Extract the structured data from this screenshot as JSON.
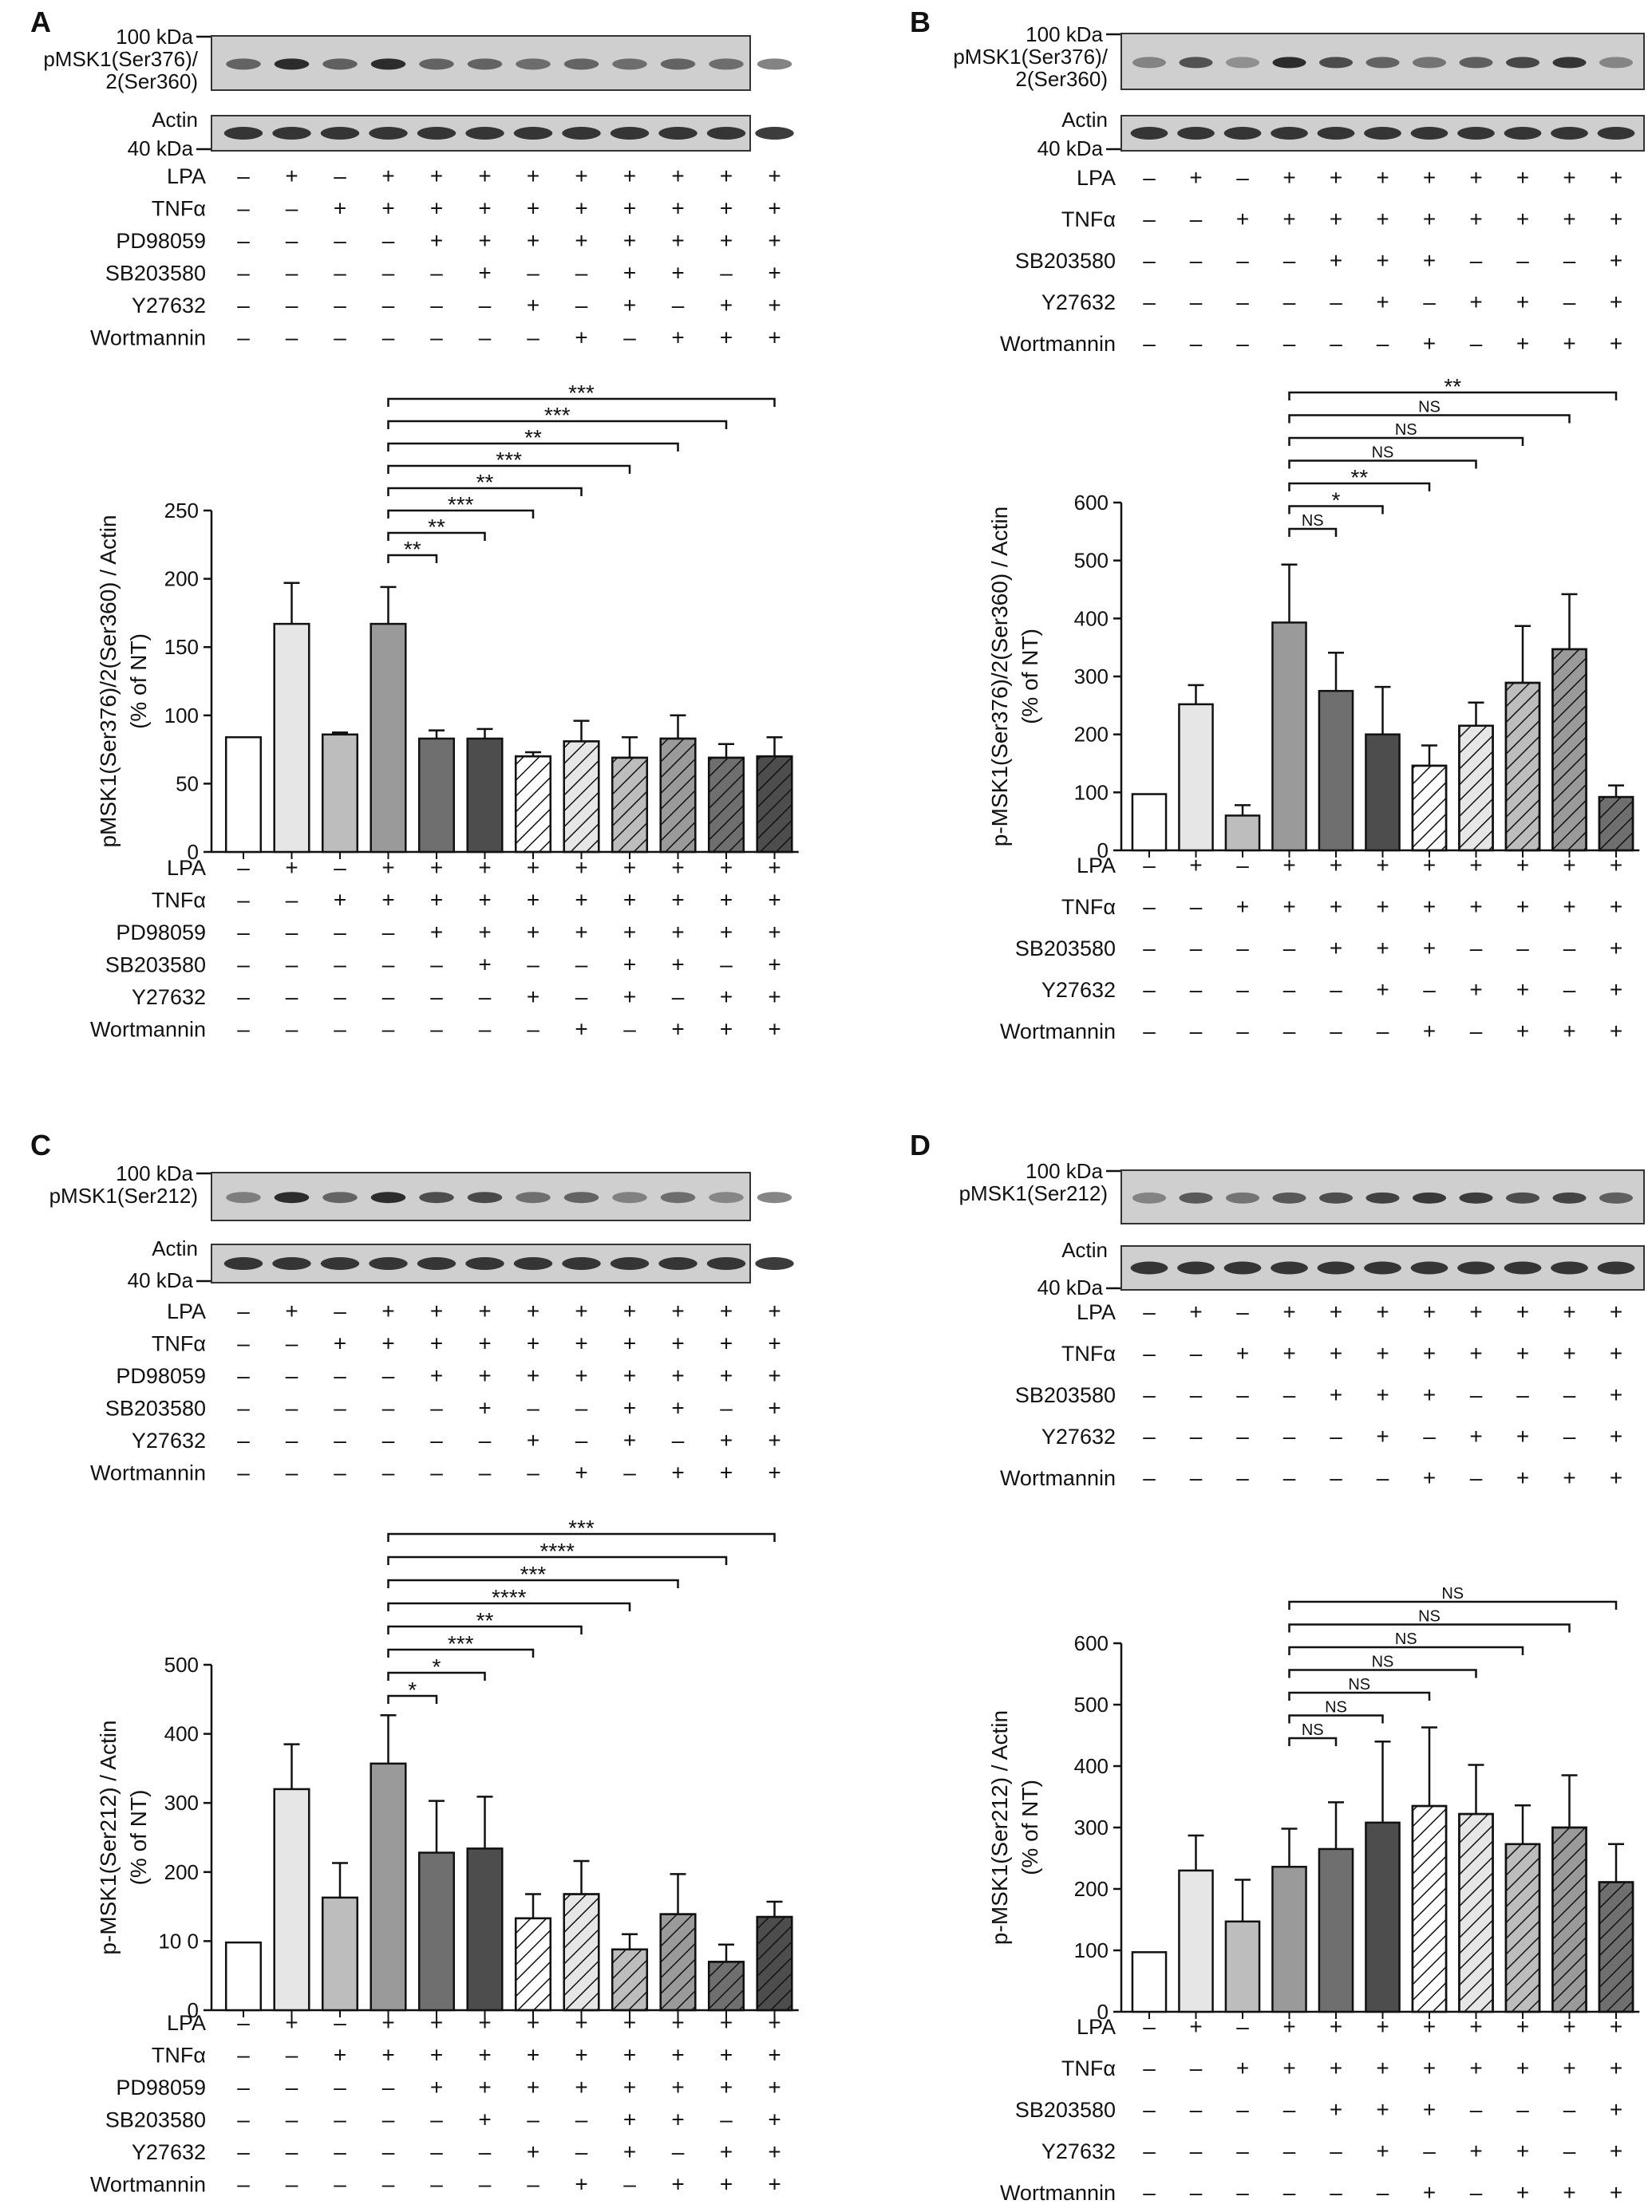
{
  "figure": {
    "panel_labels": [
      "A",
      "B",
      "C",
      "D"
    ]
  },
  "colors": {
    "white": "#ffffff",
    "light": "#e6e6e6",
    "mid": "#bdbdbd",
    "gray": "#9a9a9a",
    "dark": "#6f6f6f",
    "darker": "#4d4d4d",
    "blot": "#cfcfcf"
  },
  "chart_data": [
    {
      "panel": "A",
      "type": "bar",
      "blot_labels": {
        "top_marker": "100 kDa",
        "bottom_marker": "40 kDa",
        "band1": "pMSK1(Ser376)/",
        "band1b": "2(Ser360)",
        "band2": "Actin"
      },
      "ylabel": [
        "pMSK1(Ser376)/2(Ser360) / Actin",
        "(% of NT)"
      ],
      "ylim": [
        0,
        250
      ],
      "yticks": [
        "0",
        "50",
        "100",
        "150",
        "200",
        "250"
      ],
      "values": [
        84,
        167,
        86,
        167,
        83,
        83,
        70,
        81,
        69,
        83,
        69,
        70
      ],
      "errors": [
        0,
        30,
        1.5,
        27,
        6,
        7,
        3,
        15,
        15,
        17,
        10,
        14
      ],
      "fills": [
        "white",
        "light",
        "mid",
        "gray",
        "dark",
        "darker",
        "white",
        "light",
        "mid",
        "gray",
        "dark",
        "darker"
      ],
      "hatched": [
        false,
        false,
        false,
        false,
        false,
        false,
        true,
        true,
        true,
        true,
        true,
        true
      ],
      "comparisons": [
        {
          "from": 3,
          "to": 4,
          "label": "**"
        },
        {
          "from": 3,
          "to": 5,
          "label": "**"
        },
        {
          "from": 3,
          "to": 6,
          "label": "***"
        },
        {
          "from": 3,
          "to": 7,
          "label": "**"
        },
        {
          "from": 3,
          "to": 8,
          "label": "***"
        },
        {
          "from": 3,
          "to": 9,
          "label": "**"
        },
        {
          "from": 3,
          "to": 10,
          "label": "***"
        },
        {
          "from": 3,
          "to": 11,
          "label": "***"
        }
      ],
      "treatments": [
        {
          "name": "LPA",
          "signs": [
            "–",
            "+",
            "–",
            "+",
            "+",
            "+",
            "+",
            "+",
            "+",
            "+",
            "+",
            "+"
          ]
        },
        {
          "name": "TNFα",
          "signs": [
            "–",
            "–",
            "+",
            "+",
            "+",
            "+",
            "+",
            "+",
            "+",
            "+",
            "+",
            "+"
          ]
        },
        {
          "name": "PD98059",
          "signs": [
            "–",
            "–",
            "–",
            "–",
            "+",
            "+",
            "+",
            "+",
            "+",
            "+",
            "+",
            "+"
          ]
        },
        {
          "name": "SB203580",
          "signs": [
            "–",
            "–",
            "–",
            "–",
            "–",
            "+",
            "–",
            "–",
            "+",
            "+",
            "–",
            "+"
          ]
        },
        {
          "name": "Y27632",
          "signs": [
            "–",
            "–",
            "–",
            "–",
            "–",
            "–",
            "+",
            "–",
            "+",
            "–",
            "+",
            "+"
          ]
        },
        {
          "name": "Wortmannin",
          "signs": [
            "–",
            "–",
            "–",
            "–",
            "–",
            "–",
            "–",
            "+",
            "–",
            "+",
            "+",
            "+"
          ]
        }
      ]
    },
    {
      "panel": "B",
      "type": "bar",
      "blot_labels": {
        "top_marker": "100 kDa",
        "bottom_marker": "40 kDa",
        "band1": "pMSK1(Ser376)/",
        "band1b": "2(Ser360)",
        "band2": "Actin"
      },
      "ylabel": [
        "p-MSK1(Ser376)/2(Ser360) / Actin",
        "(% of NT)"
      ],
      "ylim": [
        0,
        600
      ],
      "yticks": [
        "0",
        "100",
        "200",
        "300",
        "400",
        "500",
        "600"
      ],
      "values": [
        97,
        252,
        60,
        393,
        275,
        200,
        146,
        215,
        289,
        347,
        92
      ],
      "errors": [
        0,
        33,
        18,
        100,
        66,
        82,
        35,
        40,
        98,
        95,
        20
      ],
      "fills": [
        "white",
        "light",
        "mid",
        "gray",
        "dark",
        "darker",
        "white",
        "light",
        "mid",
        "gray",
        "dark"
      ],
      "hatched": [
        false,
        false,
        false,
        false,
        false,
        false,
        true,
        true,
        true,
        true,
        true
      ],
      "comparisons": [
        {
          "from": 3,
          "to": 4,
          "label": "NS"
        },
        {
          "from": 3,
          "to": 5,
          "label": "*"
        },
        {
          "from": 3,
          "to": 6,
          "label": "**"
        },
        {
          "from": 3,
          "to": 7,
          "label": "NS"
        },
        {
          "from": 3,
          "to": 8,
          "label": "NS"
        },
        {
          "from": 3,
          "to": 9,
          "label": "NS"
        },
        {
          "from": 3,
          "to": 10,
          "label": "**"
        }
      ],
      "treatments": [
        {
          "name": "LPA",
          "signs": [
            "–",
            "+",
            "–",
            "+",
            "+",
            "+",
            "+",
            "+",
            "+",
            "+",
            "+"
          ]
        },
        {
          "name": "TNFα",
          "signs": [
            "–",
            "–",
            "+",
            "+",
            "+",
            "+",
            "+",
            "+",
            "+",
            "+",
            "+"
          ]
        },
        {
          "name": "SB203580",
          "signs": [
            "–",
            "–",
            "–",
            "–",
            "+",
            "+",
            "+",
            "–",
            "–",
            "–",
            "+"
          ]
        },
        {
          "name": "Y27632",
          "signs": [
            "–",
            "–",
            "–",
            "–",
            "–",
            "+",
            "–",
            "+",
            "+",
            "–",
            "+"
          ]
        },
        {
          "name": "Wortmannin",
          "signs": [
            "–",
            "–",
            "–",
            "–",
            "–",
            "–",
            "+",
            "–",
            "+",
            "+",
            "+"
          ]
        }
      ]
    },
    {
      "panel": "C",
      "type": "bar",
      "blot_labels": {
        "top_marker": "100 kDa",
        "bottom_marker": "40 kDa",
        "band1": "pMSK1(Ser212)",
        "band1b": "",
        "band2": "Actin"
      },
      "ylabel": [
        "p-MSK1(Ser212) / Actin",
        "(% of NT)"
      ],
      "ylim": [
        0,
        500
      ],
      "yticks": [
        "0",
        "10 0",
        "200",
        "300",
        "400",
        "500"
      ],
      "values": [
        98,
        320,
        163,
        357,
        228,
        234,
        133,
        168,
        88,
        139,
        70,
        135
      ],
      "errors": [
        0,
        65,
        50,
        70,
        75,
        75,
        35,
        48,
        22,
        58,
        25,
        22
      ],
      "fills": [
        "white",
        "light",
        "mid",
        "gray",
        "dark",
        "darker",
        "white",
        "light",
        "mid",
        "gray",
        "dark",
        "darker"
      ],
      "hatched": [
        false,
        false,
        false,
        false,
        false,
        false,
        true,
        true,
        true,
        true,
        true,
        true
      ],
      "comparisons": [
        {
          "from": 3,
          "to": 4,
          "label": "*"
        },
        {
          "from": 3,
          "to": 5,
          "label": "*"
        },
        {
          "from": 3,
          "to": 6,
          "label": "***"
        },
        {
          "from": 3,
          "to": 7,
          "label": "**"
        },
        {
          "from": 3,
          "to": 8,
          "label": "****"
        },
        {
          "from": 3,
          "to": 9,
          "label": "***"
        },
        {
          "from": 3,
          "to": 10,
          "label": "****"
        },
        {
          "from": 3,
          "to": 11,
          "label": "***"
        }
      ],
      "treatments": [
        {
          "name": "LPA",
          "signs": [
            "–",
            "+",
            "–",
            "+",
            "+",
            "+",
            "+",
            "+",
            "+",
            "+",
            "+",
            "+"
          ]
        },
        {
          "name": "TNFα",
          "signs": [
            "–",
            "–",
            "+",
            "+",
            "+",
            "+",
            "+",
            "+",
            "+",
            "+",
            "+",
            "+"
          ]
        },
        {
          "name": "PD98059",
          "signs": [
            "–",
            "–",
            "–",
            "–",
            "+",
            "+",
            "+",
            "+",
            "+",
            "+",
            "+",
            "+"
          ]
        },
        {
          "name": "SB203580",
          "signs": [
            "–",
            "–",
            "–",
            "–",
            "–",
            "+",
            "–",
            "–",
            "+",
            "+",
            "–",
            "+"
          ]
        },
        {
          "name": "Y27632",
          "signs": [
            "–",
            "–",
            "–",
            "–",
            "–",
            "–",
            "+",
            "–",
            "+",
            "–",
            "+",
            "+"
          ]
        },
        {
          "name": "Wortmannin",
          "signs": [
            "–",
            "–",
            "–",
            "–",
            "–",
            "–",
            "–",
            "+",
            "–",
            "+",
            "+",
            "+"
          ]
        }
      ]
    },
    {
      "panel": "D",
      "type": "bar",
      "blot_labels": {
        "top_marker": "100 kDa",
        "bottom_marker": "40 kDa",
        "band1": "pMSK1(Ser212)",
        "band1b": "",
        "band2": "Actin"
      },
      "ylabel": [
        "p-MSK1(Ser212) / Actin",
        "(% of NT)"
      ],
      "ylim": [
        0,
        600
      ],
      "yticks": [
        "0",
        "100",
        "200",
        "300",
        "400",
        "500",
        "600"
      ],
      "values": [
        97,
        230,
        147,
        236,
        265,
        308,
        335,
        322,
        273,
        300,
        211
      ],
      "errors": [
        0,
        57,
        68,
        62,
        76,
        132,
        128,
        80,
        63,
        85,
        62
      ],
      "fills": [
        "white",
        "light",
        "mid",
        "gray",
        "dark",
        "darker",
        "white",
        "light",
        "mid",
        "gray",
        "dark"
      ],
      "hatched": [
        false,
        false,
        false,
        false,
        false,
        false,
        true,
        true,
        true,
        true,
        true
      ],
      "comparisons": [
        {
          "from": 3,
          "to": 4,
          "label": "NS"
        },
        {
          "from": 3,
          "to": 5,
          "label": "NS"
        },
        {
          "from": 3,
          "to": 6,
          "label": "NS"
        },
        {
          "from": 3,
          "to": 7,
          "label": "NS"
        },
        {
          "from": 3,
          "to": 8,
          "label": "NS"
        },
        {
          "from": 3,
          "to": 9,
          "label": "NS"
        },
        {
          "from": 3,
          "to": 10,
          "label": "NS"
        }
      ],
      "treatments": [
        {
          "name": "LPA",
          "signs": [
            "–",
            "+",
            "–",
            "+",
            "+",
            "+",
            "+",
            "+",
            "+",
            "+",
            "+"
          ]
        },
        {
          "name": "TNFα",
          "signs": [
            "–",
            "–",
            "+",
            "+",
            "+",
            "+",
            "+",
            "+",
            "+",
            "+",
            "+"
          ]
        },
        {
          "name": "SB203580",
          "signs": [
            "–",
            "–",
            "–",
            "–",
            "+",
            "+",
            "+",
            "–",
            "–",
            "–",
            "+"
          ]
        },
        {
          "name": "Y27632",
          "signs": [
            "–",
            "–",
            "–",
            "–",
            "–",
            "+",
            "–",
            "+",
            "+",
            "–",
            "+"
          ]
        },
        {
          "name": "Wortmannin",
          "signs": [
            "–",
            "–",
            "–",
            "–",
            "–",
            "–",
            "+",
            "–",
            "+",
            "+",
            "+"
          ]
        }
      ]
    }
  ]
}
